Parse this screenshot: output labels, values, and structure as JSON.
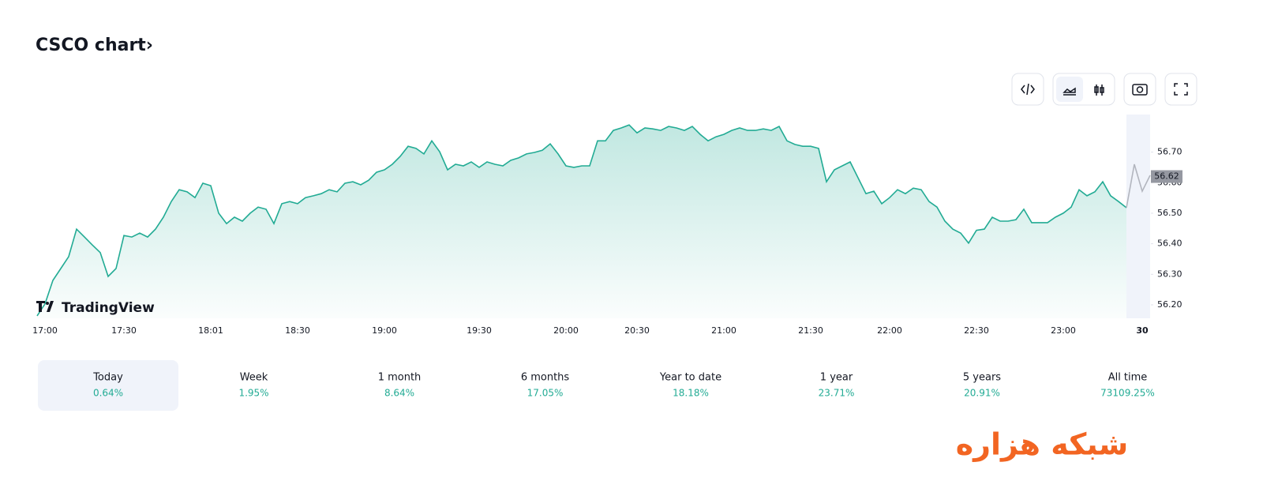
{
  "header": {
    "title": "CSCO chart›"
  },
  "chart_data": {
    "type": "area",
    "logo": "TradingView",
    "ylim": [
      56.156,
      56.823
    ],
    "yticks": [
      {
        "value": 56.2,
        "label": "56.20"
      },
      {
        "value": 56.3,
        "label": "56.30"
      },
      {
        "value": 56.4,
        "label": "56.40"
      },
      {
        "value": 56.5,
        "label": "56.50"
      },
      {
        "value": 56.6,
        "label": "56.60"
      },
      {
        "value": 56.7,
        "label": "56.70"
      }
    ],
    "xlim": [
      0,
      141
    ],
    "xticks": [
      {
        "value": 1,
        "label": "17:00"
      },
      {
        "value": 11,
        "label": "17:30"
      },
      {
        "value": 22,
        "label": "18:01"
      },
      {
        "value": 33,
        "label": "18:30"
      },
      {
        "value": 44,
        "label": "19:00"
      },
      {
        "value": 56,
        "label": "19:30"
      },
      {
        "value": 67,
        "label": "20:00"
      },
      {
        "value": 76,
        "label": "20:30"
      },
      {
        "value": 87,
        "label": "21:00"
      },
      {
        "value": 98,
        "label": "21:30"
      },
      {
        "value": 108,
        "label": "22:00"
      },
      {
        "value": 119,
        "label": "22:30"
      },
      {
        "value": 130,
        "label": "23:00"
      },
      {
        "value": 140,
        "label": "30"
      }
    ],
    "series": [
      {
        "color": "#22ab94",
        "values": [
          56.164,
          56.203,
          56.28,
          56.319,
          56.358,
          56.448,
          56.422,
          56.396,
          56.371,
          56.293,
          56.319,
          56.427,
          56.422,
          56.435,
          56.422,
          56.448,
          56.487,
          56.538,
          56.577,
          56.57,
          56.551,
          56.598,
          56.59,
          56.5,
          56.466,
          56.487,
          56.474,
          56.5,
          56.52,
          56.513,
          56.466,
          56.531,
          56.538,
          56.531,
          56.551,
          56.557,
          56.564,
          56.577,
          56.57,
          56.598,
          56.603,
          56.593,
          56.608,
          56.634,
          56.642,
          56.66,
          56.686,
          56.719,
          56.712,
          56.694,
          56.737,
          56.701,
          56.642,
          56.66,
          56.655,
          56.668,
          56.65,
          56.668,
          56.66,
          56.655,
          56.673,
          56.681,
          56.694,
          56.699,
          56.706,
          56.727,
          56.694,
          56.655,
          56.65,
          56.655,
          56.655,
          56.737,
          56.737,
          56.771,
          56.779,
          56.789,
          56.763,
          56.779,
          56.776,
          56.771,
          56.784,
          56.779,
          56.771,
          56.784,
          56.758,
          56.737,
          56.75,
          56.758,
          56.771,
          56.779,
          56.771,
          56.771,
          56.776,
          56.771,
          56.784,
          56.737,
          56.725,
          56.719,
          56.719,
          56.712,
          56.603,
          56.642,
          56.655,
          56.668,
          56.616,
          56.564,
          56.572,
          56.531,
          56.551,
          56.577,
          56.564,
          56.582,
          56.577,
          56.538,
          56.52,
          56.474,
          56.448,
          56.435,
          56.402,
          56.444,
          56.448,
          56.487,
          56.474,
          56.474,
          56.479,
          56.513,
          56.469,
          56.469,
          56.469,
          56.487,
          56.5,
          56.52,
          56.577,
          56.557,
          56.57,
          56.603,
          56.557,
          56.538,
          56.518
        ]
      },
      {
        "color": "#b2b5be",
        "x": [
          138,
          139,
          140,
          141
        ],
        "values": [
          56.518,
          56.66,
          56.572,
          56.624
        ]
      }
    ],
    "last_price": 56.62
  },
  "periods": [
    {
      "label": "Today",
      "change": "0.64%"
    },
    {
      "label": "Week",
      "change": "1.95%"
    },
    {
      "label": "1 month",
      "change": "8.64%"
    },
    {
      "label": "6 months",
      "change": "17.05%"
    },
    {
      "label": "Year to date",
      "change": "18.18%"
    },
    {
      "label": "1 year",
      "change": "23.71%"
    },
    {
      "label": "5 years",
      "change": "20.91%"
    },
    {
      "label": "All time",
      "change": "73109.25%"
    }
  ],
  "watermark": "شبکه هزاره"
}
